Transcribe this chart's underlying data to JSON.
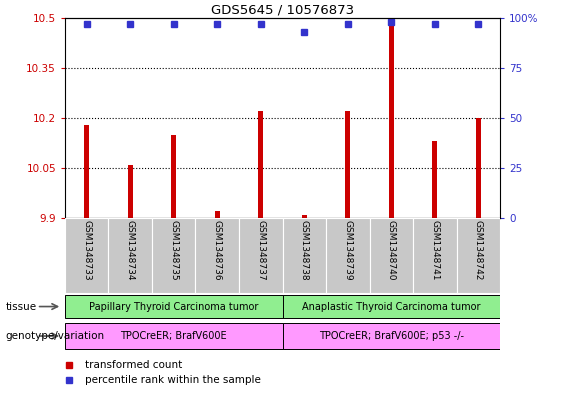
{
  "title": "GDS5645 / 10576873",
  "samples": [
    "GSM1348733",
    "GSM1348734",
    "GSM1348735",
    "GSM1348736",
    "GSM1348737",
    "GSM1348738",
    "GSM1348739",
    "GSM1348740",
    "GSM1348741",
    "GSM1348742"
  ],
  "bar_values": [
    10.18,
    10.06,
    10.15,
    9.92,
    10.22,
    9.91,
    10.22,
    10.48,
    10.13,
    10.2
  ],
  "percentile_values": [
    97,
    97,
    97,
    97,
    97,
    93,
    97,
    98,
    97,
    97
  ],
  "ylim_left": [
    9.9,
    10.5
  ],
  "ylim_right": [
    0,
    100
  ],
  "yticks_left": [
    9.9,
    10.05,
    10.2,
    10.35,
    10.5
  ],
  "yticks_right": [
    0,
    25,
    50,
    75,
    100
  ],
  "bar_color": "#cc0000",
  "dot_color": "#3333cc",
  "tissue_labels": [
    "Papillary Thyroid Carcinoma tumor",
    "Anaplastic Thyroid Carcinoma tumor"
  ],
  "tissue_split": 5,
  "genotype_labels": [
    "TPOCreER; BrafV600E",
    "TPOCreER; BrafV600E; p53 -/-"
  ],
  "genotype_color": "#ff99ff",
  "green_color": "#90ee90",
  "legend_red_label": "transformed count",
  "legend_blue_label": "percentile rank within the sample",
  "tissue_row_label": "tissue",
  "genotype_row_label": "genotype/variation",
  "bar_width": 0.12,
  "sample_bg_color": "#c8c8c8"
}
